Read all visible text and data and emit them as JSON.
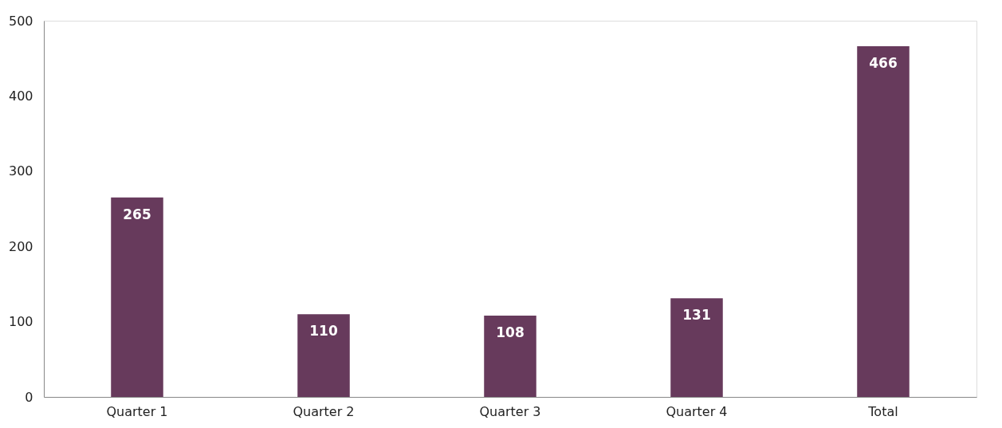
{
  "chart_data": {
    "type": "bar",
    "categories": [
      "Quarter 1",
      "Quarter 2",
      "Quarter 3",
      "Quarter 4",
      "Total"
    ],
    "values": [
      265,
      110,
      108,
      131,
      466
    ],
    "color": "#673a5c",
    "ylim": [
      0,
      500
    ],
    "yticks": [
      0,
      100,
      200,
      300,
      400,
      500
    ],
    "grid": false,
    "data_labels": true
  }
}
